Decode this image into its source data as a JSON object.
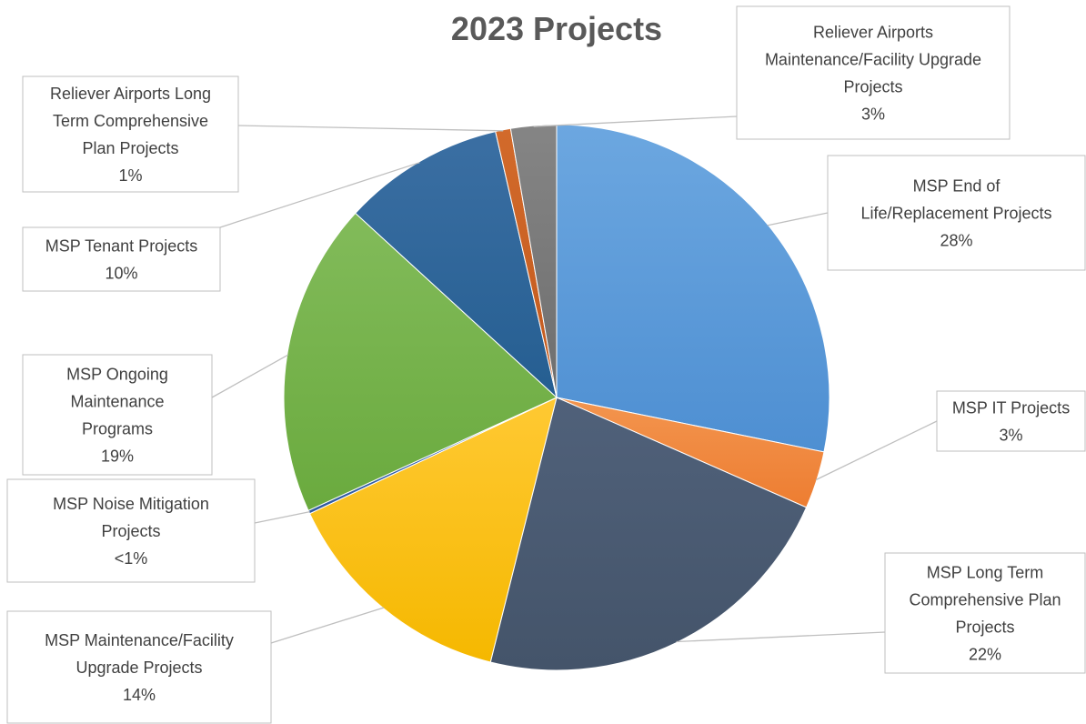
{
  "chart_data": {
    "type": "pie",
    "title": "2023 Projects",
    "slices": [
      {
        "label": "MSP End of Life/Replacement Projects",
        "label_lines": [
          "MSP End of",
          "Life/Replacement Projects"
        ],
        "pct_text": "28%",
        "value": 28.2,
        "color": "#4e8fd2",
        "color_hi": "#6ca7e0"
      },
      {
        "label": "MSP IT Projects",
        "label_lines": [
          "MSP IT Projects"
        ],
        "pct_text": "3%",
        "value": 3.4,
        "color": "#ed7d31",
        "color_hi": "#f3954f"
      },
      {
        "label": "MSP Long Term Comprehensive Plan Projects",
        "label_lines": [
          "MSP Long Term",
          "Comprehensive Plan",
          "Projects"
        ],
        "pct_text": "22%",
        "value": 22.3,
        "color": "#44546a",
        "color_hi": "#50617a"
      },
      {
        "label": "MSP Maintenance/Facility Upgrade Projects",
        "label_lines": [
          "MSP Maintenance/Facility",
          "Upgrade Projects"
        ],
        "pct_text": "14%",
        "value": 14.1,
        "color": "#f5b800",
        "color_hi": "#ffc933"
      },
      {
        "label": "MSP Noise Mitigation Projects",
        "label_lines": [
          "MSP Noise Mitigation",
          "Projects"
        ],
        "pct_text": "<1%",
        "value": 0.2,
        "color": "#2f5aa0",
        "color_hi": "#3d6bb3"
      },
      {
        "label": "MSP Ongoing Maintenance Programs",
        "label_lines": [
          "MSP Ongoing",
          "Maintenance",
          "Programs"
        ],
        "pct_text": "19%",
        "value": 18.6,
        "color": "#6aaa3e",
        "color_hi": "#82bb5a"
      },
      {
        "label": "MSP Tenant Projects",
        "label_lines": [
          "MSP Tenant Projects"
        ],
        "pct_text": "10%",
        "value": 9.6,
        "color": "#255e91",
        "color_hi": "#3b6fa3"
      },
      {
        "label": "Reliever Airports Long Term Comprehensive Plan Projects",
        "label_lines": [
          "Reliever Airports Long",
          "Term Comprehensive",
          "Plan Projects"
        ],
        "pct_text": "1%",
        "value": 0.9,
        "color": "#c35a1e",
        "color_hi": "#d26a2b"
      },
      {
        "label": "Reliever Airports Maintenance/Facility Upgrade Projects",
        "label_lines": [
          "Reliever Airports",
          "Maintenance/Facility Upgrade",
          "Projects"
        ],
        "pct_text": "3%",
        "value": 2.7,
        "color": "#6e6e6e",
        "color_hi": "#858585"
      }
    ],
    "legend": "none"
  }
}
